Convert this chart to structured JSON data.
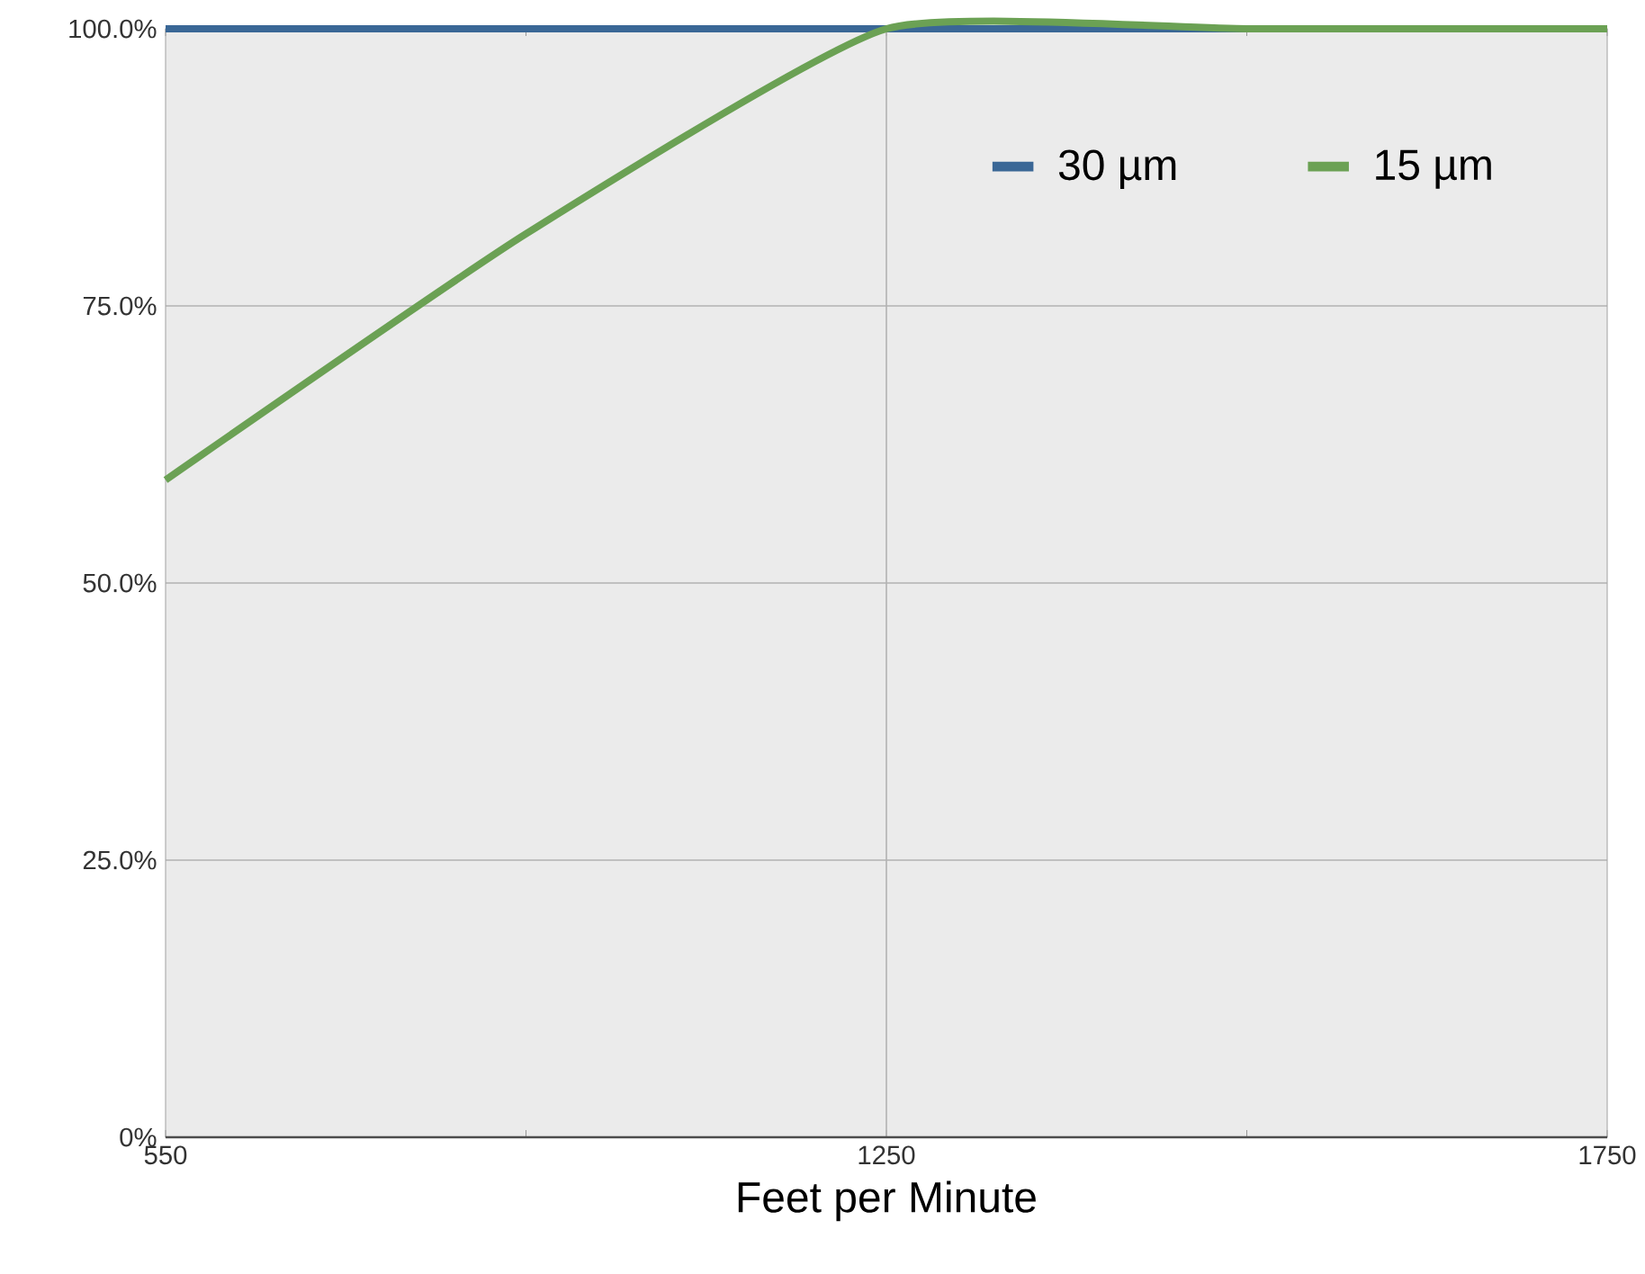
{
  "chart_data": {
    "type": "line",
    "xlabel": "Feet per Minute",
    "categories": [
      "550",
      null,
      "1250",
      null,
      "1750"
    ],
    "series": [
      {
        "name": "30 µm",
        "color": "#3a6796",
        "values": [
          100,
          100,
          100,
          100,
          100
        ]
      },
      {
        "name": "15 µm",
        "color": "#6ba154",
        "values": [
          59.3,
          81.5,
          100,
          100,
          100
        ]
      }
    ],
    "ylim": [
      0,
      100
    ],
    "yticks": [
      {
        "value": 0,
        "label": "0%"
      },
      {
        "value": 25,
        "label": "25.0%"
      },
      {
        "value": 50,
        "label": "50.0%"
      },
      {
        "value": 75,
        "label": "75.0%"
      },
      {
        "value": 100,
        "label": "100.0%"
      }
    ],
    "grid": true,
    "legend": "top right",
    "marker": "none",
    "line_style": "solid"
  }
}
